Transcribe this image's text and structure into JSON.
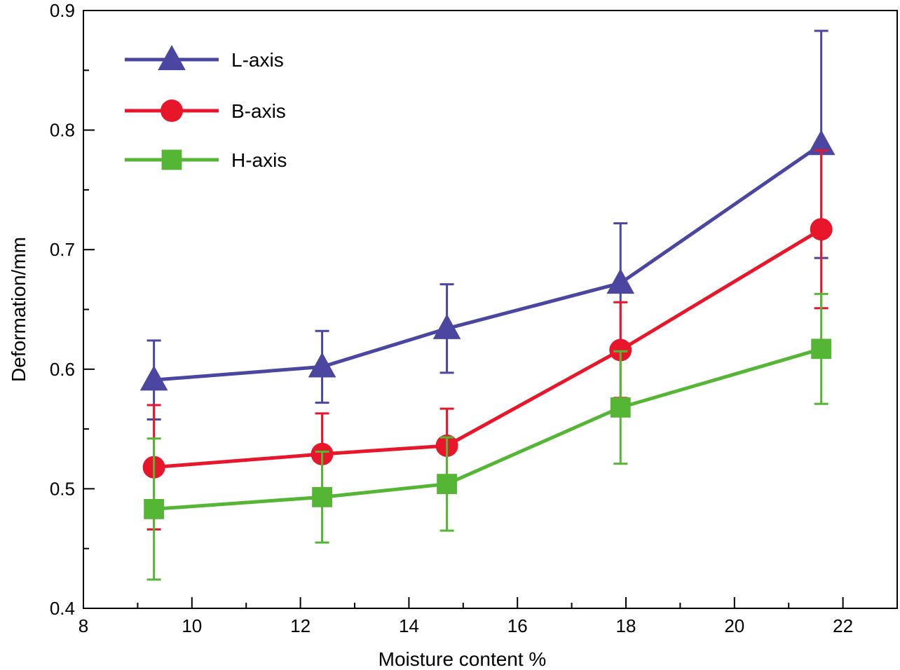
{
  "chart_data": {
    "type": "line",
    "title": "",
    "xlabel": "Moisture content %",
    "ylabel": "Deformation/mm",
    "xlim": [
      8,
      23
    ],
    "ylim": [
      0.4,
      0.9
    ],
    "xticks": [
      8,
      10,
      12,
      14,
      16,
      18,
      20,
      22
    ],
    "yticks": [
      0.4,
      0.5,
      0.6,
      0.7,
      0.8,
      0.9
    ],
    "xtick_labels": [
      "8",
      "10",
      "12",
      "14",
      "16",
      "18",
      "20",
      "22"
    ],
    "ytick_labels": [
      "0.4",
      "0.5",
      "0.6",
      "0.7",
      "0.8",
      "0.9"
    ],
    "grid": false,
    "legend_position": "top-left",
    "x": [
      9.3,
      12.4,
      14.7,
      17.9,
      21.6
    ],
    "series": [
      {
        "name": "L-axis",
        "color": "#4b46a0",
        "marker": "triangle",
        "values": [
          0.591,
          0.602,
          0.634,
          0.672,
          0.788
        ],
        "error": [
          0.033,
          0.03,
          0.037,
          0.05,
          0.095
        ]
      },
      {
        "name": "B-axis",
        "color": "#e8162b",
        "marker": "circle",
        "values": [
          0.518,
          0.529,
          0.536,
          0.616,
          0.717
        ],
        "error": [
          0.052,
          0.034,
          0.031,
          0.04,
          0.066
        ]
      },
      {
        "name": "H-axis",
        "color": "#55b635",
        "marker": "square",
        "values": [
          0.483,
          0.493,
          0.504,
          0.568,
          0.617
        ],
        "error": [
          0.059,
          0.038,
          0.039,
          0.047,
          0.046
        ]
      }
    ]
  }
}
